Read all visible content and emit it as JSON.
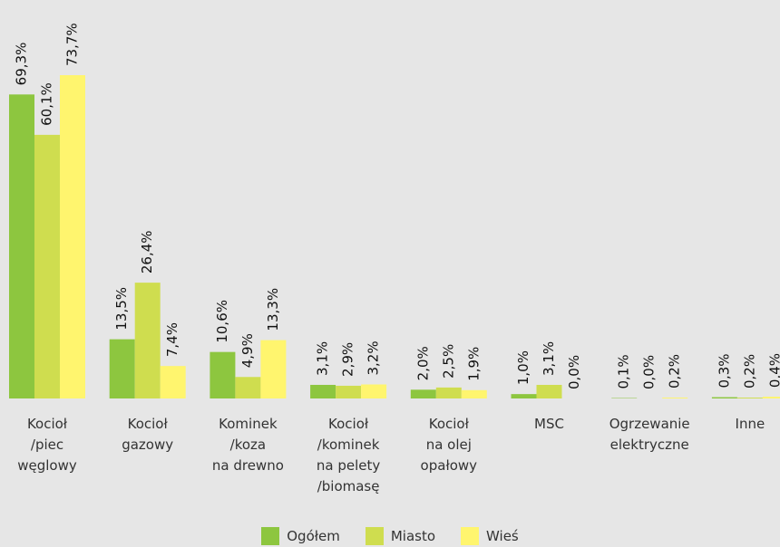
{
  "chart_data": {
    "type": "bar",
    "categories": [
      "Kocioł\n/piec\nwęglowy",
      "Kocioł\ngazowy",
      "Kominek\n/koza\nna drewno",
      "Kocioł\n/kominek\nna pelety\n/biomasę",
      "Kocioł\nna olej\nopałowy",
      "MSC",
      "Ogrzewanie\nelektryczne",
      "Inne"
    ],
    "series": [
      {
        "name": "Ogółem",
        "color": "#8dc63f",
        "values": [
          69.3,
          13.5,
          10.6,
          3.1,
          2.0,
          1.0,
          0.1,
          0.3
        ],
        "value_labels": [
          "69,3%",
          "13,5%",
          "10,6%",
          "3,1%",
          "2,0%",
          "1,0%",
          "0,1%",
          "0,3%"
        ]
      },
      {
        "name": "Miasto",
        "color": "#cfdd4f",
        "values": [
          60.1,
          26.4,
          4.9,
          2.9,
          2.5,
          3.1,
          0.0,
          0.2
        ],
        "value_labels": [
          "60,1%",
          "26,4%",
          "4,9%",
          "2,9%",
          "2,5%",
          "3,1%",
          "0,0%",
          "0,2%"
        ]
      },
      {
        "name": "Wieś",
        "color": "#fff56e",
        "values": [
          73.7,
          7.4,
          13.3,
          3.2,
          1.9,
          0.0,
          0.2,
          0.4
        ],
        "value_labels": [
          "73,7%",
          "7,4%",
          "13,3%",
          "3,2%",
          "1,9%",
          "0,0%",
          "0,2%",
          "0,4%"
        ]
      }
    ]
  }
}
